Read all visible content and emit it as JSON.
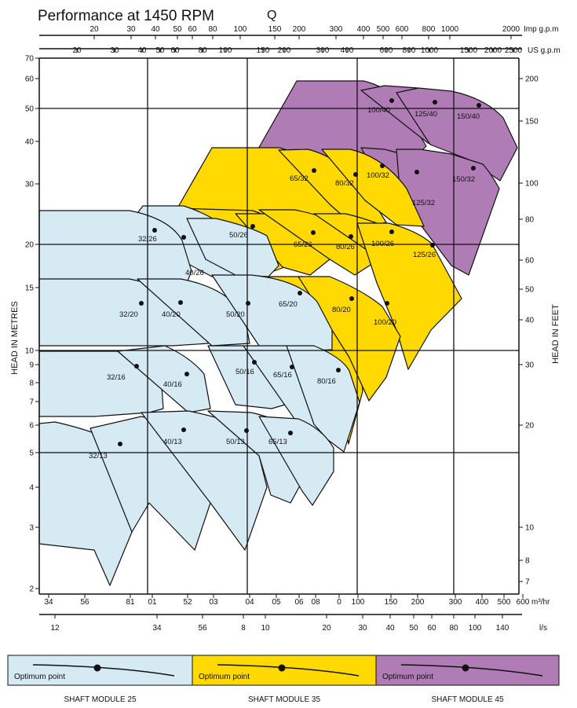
{
  "chart_data": {
    "type": "area",
    "title": "Performance at 1450 RPM",
    "q_label": "Q",
    "ylabel_left": "HEAD IN METRES",
    "ylabel_right": "HEAD IN FEET",
    "y_metres_ticks": [
      "70",
      "60",
      "50",
      "40",
      "30",
      "20",
      "15",
      "10",
      "9",
      "8",
      "7",
      "6",
      "5",
      "4",
      "3",
      "2"
    ],
    "y_feet_ticks": [
      "200",
      "150",
      "100",
      "80",
      "60",
      "50",
      "40",
      "30",
      "20",
      "10",
      "8",
      "7"
    ],
    "top_imp_ticks": [
      "20",
      "30",
      "40",
      "50",
      "60",
      "80",
      "100",
      "150",
      "200",
      "300",
      "400",
      "500",
      "600",
      "800",
      "1000",
      "2000"
    ],
    "top_imp_unit": "Imp g.p.m",
    "top_us_ticks": [
      "20",
      "30",
      "40",
      "50",
      "60",
      "80",
      "100",
      "150",
      "200",
      "300",
      "400",
      "600",
      "800",
      "1000",
      "1500",
      "2000",
      "2500"
    ],
    "top_us_unit": "US g.p.m",
    "bottom_m3_ticks": [
      "34",
      "56",
      "81",
      "01",
      "52",
      "03",
      "04",
      "05",
      "06",
      "08",
      "0",
      "100",
      "150",
      "200",
      "300",
      "400",
      "500",
      "600"
    ],
    "bottom_m3_unit": "m³/hr",
    "bottom_ls_ticks": [
      "12",
      "34",
      "56",
      "8",
      "10",
      "20",
      "30",
      "40",
      "50",
      "60",
      "80",
      "100",
      "140"
    ],
    "bottom_ls_unit": "l/s",
    "series": [
      {
        "name": "32/13",
        "module": 25
      },
      {
        "name": "32/16",
        "module": 25
      },
      {
        "name": "32/20",
        "module": 25
      },
      {
        "name": "32/26",
        "module": 25
      },
      {
        "name": "40/13",
        "module": 25
      },
      {
        "name": "40/16",
        "module": 25
      },
      {
        "name": "40/20",
        "module": 25
      },
      {
        "name": "40/26",
        "module": 25
      },
      {
        "name": "50/13",
        "module": 25
      },
      {
        "name": "50/16",
        "module": 25
      },
      {
        "name": "50/20",
        "module": 25
      },
      {
        "name": "65/13",
        "module": 25
      },
      {
        "name": "65/16",
        "module": 25
      },
      {
        "name": "80/16",
        "module": 25
      },
      {
        "name": "50/26",
        "module": 35
      },
      {
        "name": "65/20",
        "module": 35
      },
      {
        "name": "65/26",
        "module": 35
      },
      {
        "name": "65/32",
        "module": 35
      },
      {
        "name": "80/20",
        "module": 35
      },
      {
        "name": "80/26",
        "module": 35
      },
      {
        "name": "80/32",
        "module": 35
      },
      {
        "name": "100/20",
        "module": 35
      },
      {
        "name": "100/26",
        "module": 35
      },
      {
        "name": "100/32",
        "module": 35
      },
      {
        "name": "125/26",
        "module": 35
      },
      {
        "name": "100/40",
        "module": 45
      },
      {
        "name": "125/32",
        "module": 45
      },
      {
        "name": "125/40",
        "module": 45
      },
      {
        "name": "150/32",
        "module": 45
      },
      {
        "name": "150/40",
        "module": 45
      }
    ],
    "legend": [
      {
        "label": "Optimum point",
        "module_label": "SHAFT MODULE 25",
        "color": "#d6eaf4"
      },
      {
        "label": "Optimum point",
        "module_label": "SHAFT MODULE 35",
        "color": "#ffd900"
      },
      {
        "label": "Optimum point",
        "module_label": "SHAFT MODULE 45",
        "color": "#b07cb5"
      }
    ]
  }
}
